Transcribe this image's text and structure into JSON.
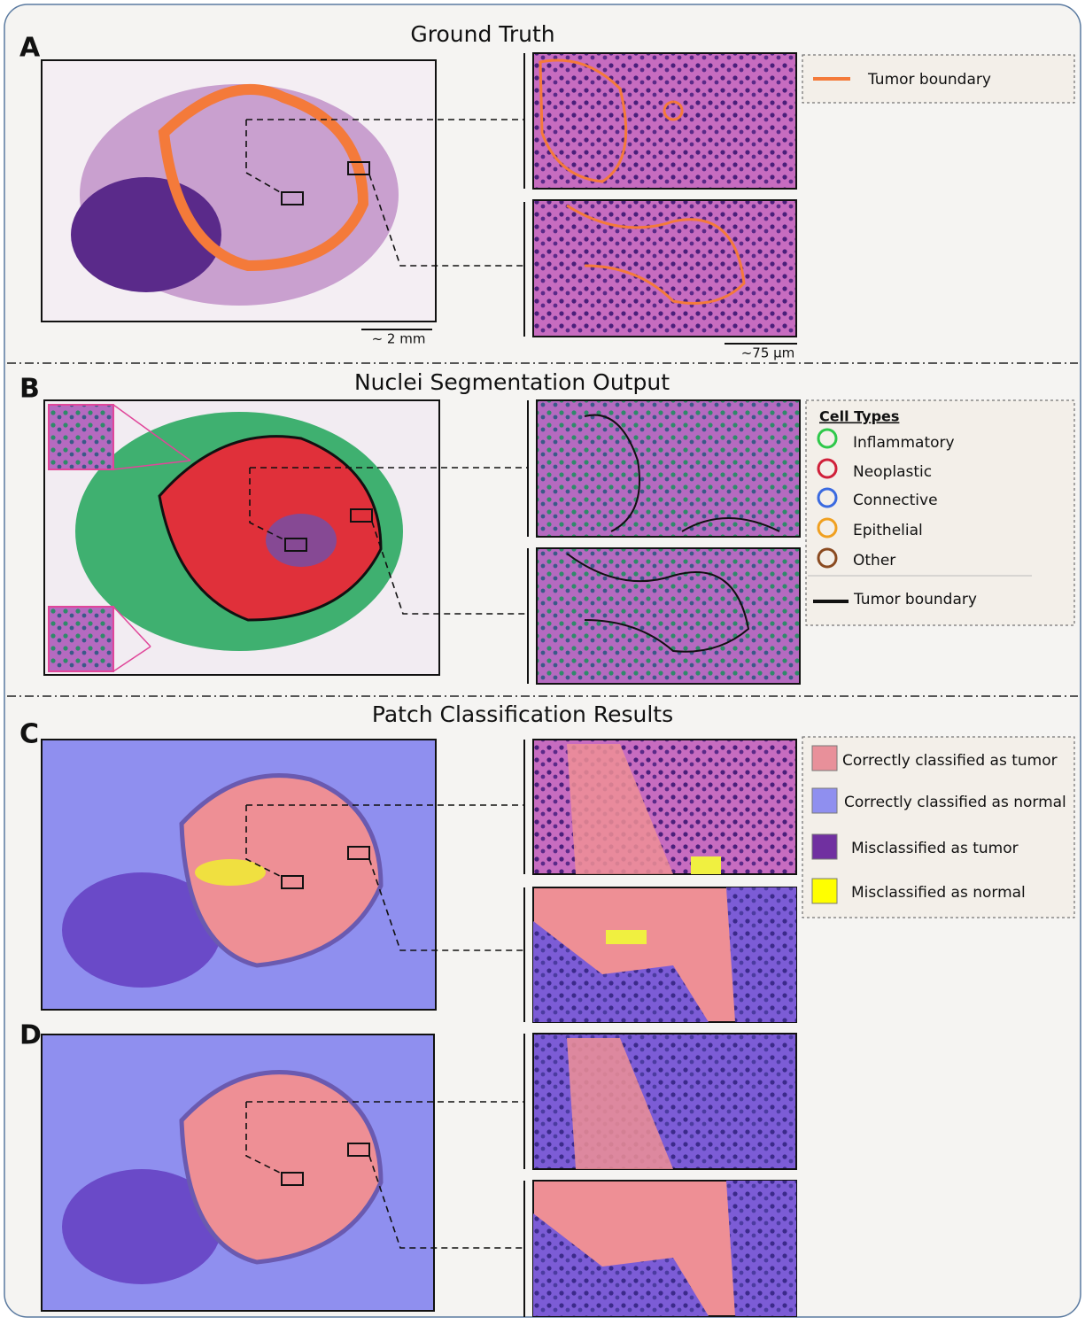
{
  "panel_a": {
    "label": "A",
    "title": "Ground Truth",
    "scale_bar_main": "~ 2 mm",
    "scale_bar_zoom": "~75  µm",
    "legend": [
      "Tumor boundary"
    ]
  },
  "panel_b": {
    "label": "B",
    "title": "Nuclei Segmentation Output",
    "legend_title": "Cell Types",
    "cell_types": [
      "Inflammatory",
      "Neoplastic",
      "Connective",
      "Epithelial",
      "Other"
    ],
    "legend_line": "Tumor boundary"
  },
  "panel_c": {
    "label": "C",
    "title": "Patch Classification Results",
    "legend": [
      "Correctly classified as tumor",
      "Correctly classified as normal",
      "Misclassified as tumor",
      "Misclassified as normal"
    ]
  },
  "panel_d": {
    "label": "D"
  }
}
